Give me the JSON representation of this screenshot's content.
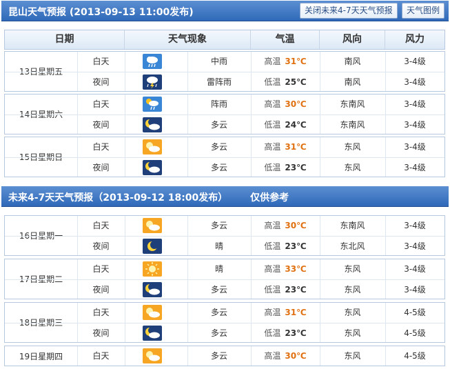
{
  "header1": {
    "title": "昆山天气预报 (2013-09-13  11:00发布)",
    "btn_close": "关闭未来4-7天天气预报",
    "btn_legend": "天气图例"
  },
  "columns": [
    "日期",
    "天气现象",
    "气温",
    "风向",
    "风力"
  ],
  "header2": {
    "title": "未来4-7天天气预报（2013-09-12 18:00发布）",
    "note": "仅供参考"
  },
  "temp_labels": {
    "high": "高温",
    "low": "低温"
  },
  "days": [
    {
      "date": "13日星期五",
      "periods": [
        {
          "period": "白天",
          "icon": "rain-cloud-icon",
          "weather": "中雨",
          "temp": "31℃",
          "wind_dir": "南风",
          "wind_force": "3-4级"
        },
        {
          "period": "夜间",
          "icon": "thunder-rain-icon",
          "weather": "雷阵雨",
          "temp": "25℃",
          "wind_dir": "南风",
          "wind_force": "3-4级"
        }
      ]
    },
    {
      "date": "14日星期六",
      "periods": [
        {
          "period": "白天",
          "icon": "shower-icon",
          "weather": "阵雨",
          "temp": "30℃",
          "wind_dir": "东南风",
          "wind_force": "3-4级"
        },
        {
          "period": "夜间",
          "icon": "moon-cloud-icon",
          "weather": "多云",
          "temp": "24℃",
          "wind_dir": "东南风",
          "wind_force": "3-4级"
        }
      ]
    },
    {
      "date": "15日星期日",
      "periods": [
        {
          "period": "白天",
          "icon": "sun-cloud-icon",
          "weather": "多云",
          "temp": "31℃",
          "wind_dir": "东风",
          "wind_force": "3-4级"
        },
        {
          "period": "夜间",
          "icon": "moon-cloud-icon",
          "weather": "多云",
          "temp": "23℃",
          "wind_dir": "东风",
          "wind_force": "3-4级"
        }
      ]
    },
    {
      "date": "16日星期一",
      "periods": [
        {
          "period": "白天",
          "icon": "sun-cloud-icon",
          "weather": "多云",
          "temp": "30℃",
          "wind_dir": "东南风",
          "wind_force": "3-4级"
        },
        {
          "period": "夜间",
          "icon": "moon-icon",
          "weather": "晴",
          "temp": "23℃",
          "wind_dir": "东北风",
          "wind_force": "3-4级"
        }
      ]
    },
    {
      "date": "17日星期二",
      "periods": [
        {
          "period": "白天",
          "icon": "sun-icon",
          "weather": "晴",
          "temp": "33℃",
          "wind_dir": "东风",
          "wind_force": "3-4级"
        },
        {
          "period": "夜间",
          "icon": "moon-cloud-icon",
          "weather": "多云",
          "temp": "23℃",
          "wind_dir": "东风",
          "wind_force": "3-4级"
        }
      ]
    },
    {
      "date": "18日星期三",
      "periods": [
        {
          "period": "白天",
          "icon": "sun-cloud-icon",
          "weather": "多云",
          "temp": "31℃",
          "wind_dir": "东风",
          "wind_force": "4-5级"
        },
        {
          "period": "夜间",
          "icon": "moon-cloud-icon",
          "weather": "多云",
          "temp": "23℃",
          "wind_dir": "东风",
          "wind_force": "4-5级"
        }
      ]
    },
    {
      "date": "19日星期四",
      "periods": [
        {
          "period": "白天",
          "icon": "sun-cloud-icon",
          "weather": "多云",
          "temp": "30℃",
          "wind_dir": "东风",
          "wind_force": "4-5级"
        }
      ]
    }
  ]
}
